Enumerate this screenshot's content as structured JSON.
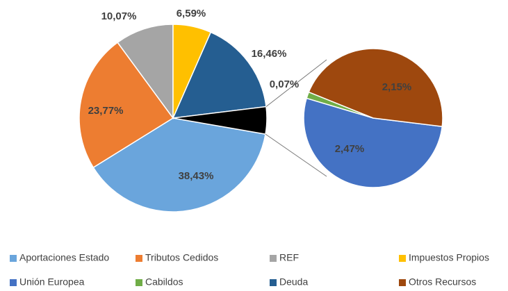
{
  "chart_data": {
    "type": "pie-of-pie",
    "categories": [
      "Aportaciones  Estado",
      "Tributos Cedidos",
      "REF",
      "Impuestos Propios",
      "Unión Europea",
      "Cabildos",
      "Deuda",
      "Otros Recursos"
    ],
    "values": [
      38.43,
      23.77,
      10.07,
      6.59,
      2.47,
      0.07,
      16.46,
      2.15
    ],
    "value_labels": [
      "38,43%",
      "23,77%",
      "10,07%",
      "6,59%",
      "2,47%",
      "0,07%",
      "16,46%",
      "2,15%"
    ],
    "colors": [
      "#6aa5dc",
      "#ed7d31",
      "#a5a5a5",
      "#ffc000",
      "#4472c4",
      "#70ad47",
      "#255e91",
      "#9e480e"
    ],
    "second_plot": [
      false,
      false,
      false,
      false,
      true,
      true,
      false,
      true
    ],
    "other_color": "#000000",
    "legend": "bottom"
  }
}
